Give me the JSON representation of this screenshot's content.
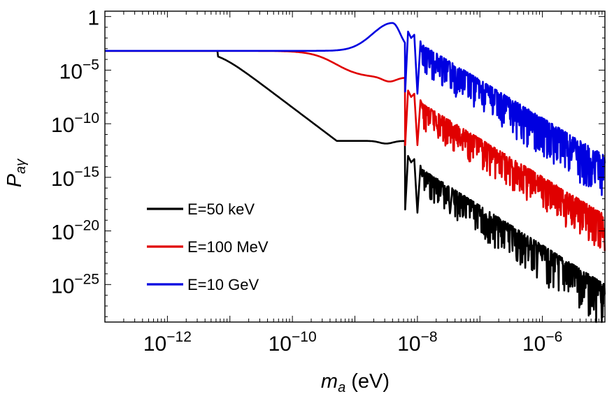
{
  "chart_data": {
    "type": "line",
    "scale": "log-log",
    "xlabel": {
      "base": "m",
      "sub": "a",
      "unit": " (eV)"
    },
    "ylabel": {
      "base": "P",
      "sub": "aγ"
    },
    "xlim_log10": [
      -13,
      -5
    ],
    "ylim_log10": [
      -28.5,
      0.5
    ],
    "x_ticks": [
      {
        "exp": -12,
        "label": "10",
        "sup": "−12"
      },
      {
        "exp": -10,
        "label": "10",
        "sup": "−10"
      },
      {
        "exp": -8,
        "label": "10",
        "sup": "−8"
      },
      {
        "exp": -6,
        "label": "10",
        "sup": "−6"
      }
    ],
    "y_ticks": [
      {
        "exp": 0,
        "label": "1",
        "sup": ""
      },
      {
        "exp": -5,
        "label": "10",
        "sup": "−5"
      },
      {
        "exp": -10,
        "label": "10",
        "sup": "−10"
      },
      {
        "exp": -15,
        "label": "10",
        "sup": "−15"
      },
      {
        "exp": -20,
        "label": "10",
        "sup": "−20"
      },
      {
        "exp": -25,
        "label": "10",
        "sup": "−25"
      }
    ],
    "legend_position": "lower-left",
    "series": [
      {
        "name": "E=50 keV",
        "color": "#000000",
        "plateau_log10": -3.2,
        "knee_log10_ma": -11.2,
        "shelf_log10": -11.6,
        "first_dip_log10_ma": -8.2,
        "oscillation_envelope_top_log10": [
          [
            -8.1,
            -13.6
          ],
          [
            -5,
            -25.0
          ]
        ],
        "oscillation_envelope_bottom_log10": [
          [
            -8.1,
            -15.5
          ],
          [
            -5,
            -28.5
          ]
        ]
      },
      {
        "name": "E=100 MeV",
        "color": "#e00000",
        "plateau_log10": -3.2,
        "knee_log10_ma": -9.3,
        "shelf_log10": -5.7,
        "first_dip_log10_ma": -8.2,
        "oscillation_envelope_top_log10": [
          [
            -8.1,
            -7.5
          ],
          [
            -5,
            -18.5
          ]
        ],
        "oscillation_envelope_bottom_log10": [
          [
            -8.1,
            -9.5
          ],
          [
            -5,
            -21.5
          ]
        ]
      },
      {
        "name": "E=10 GeV",
        "color": "#0000e0",
        "plateau_log10": -3.2,
        "peak_log10_ma": -8.4,
        "peak_log10": -0.6,
        "first_dip_log10_ma": -8.2,
        "oscillation_envelope_top_log10": [
          [
            -8.1,
            -2.0
          ],
          [
            -5,
            -13.0
          ]
        ],
        "oscillation_envelope_bottom_log10": [
          [
            -8.1,
            -4.2
          ],
          [
            -5,
            -16.5
          ]
        ]
      }
    ]
  }
}
